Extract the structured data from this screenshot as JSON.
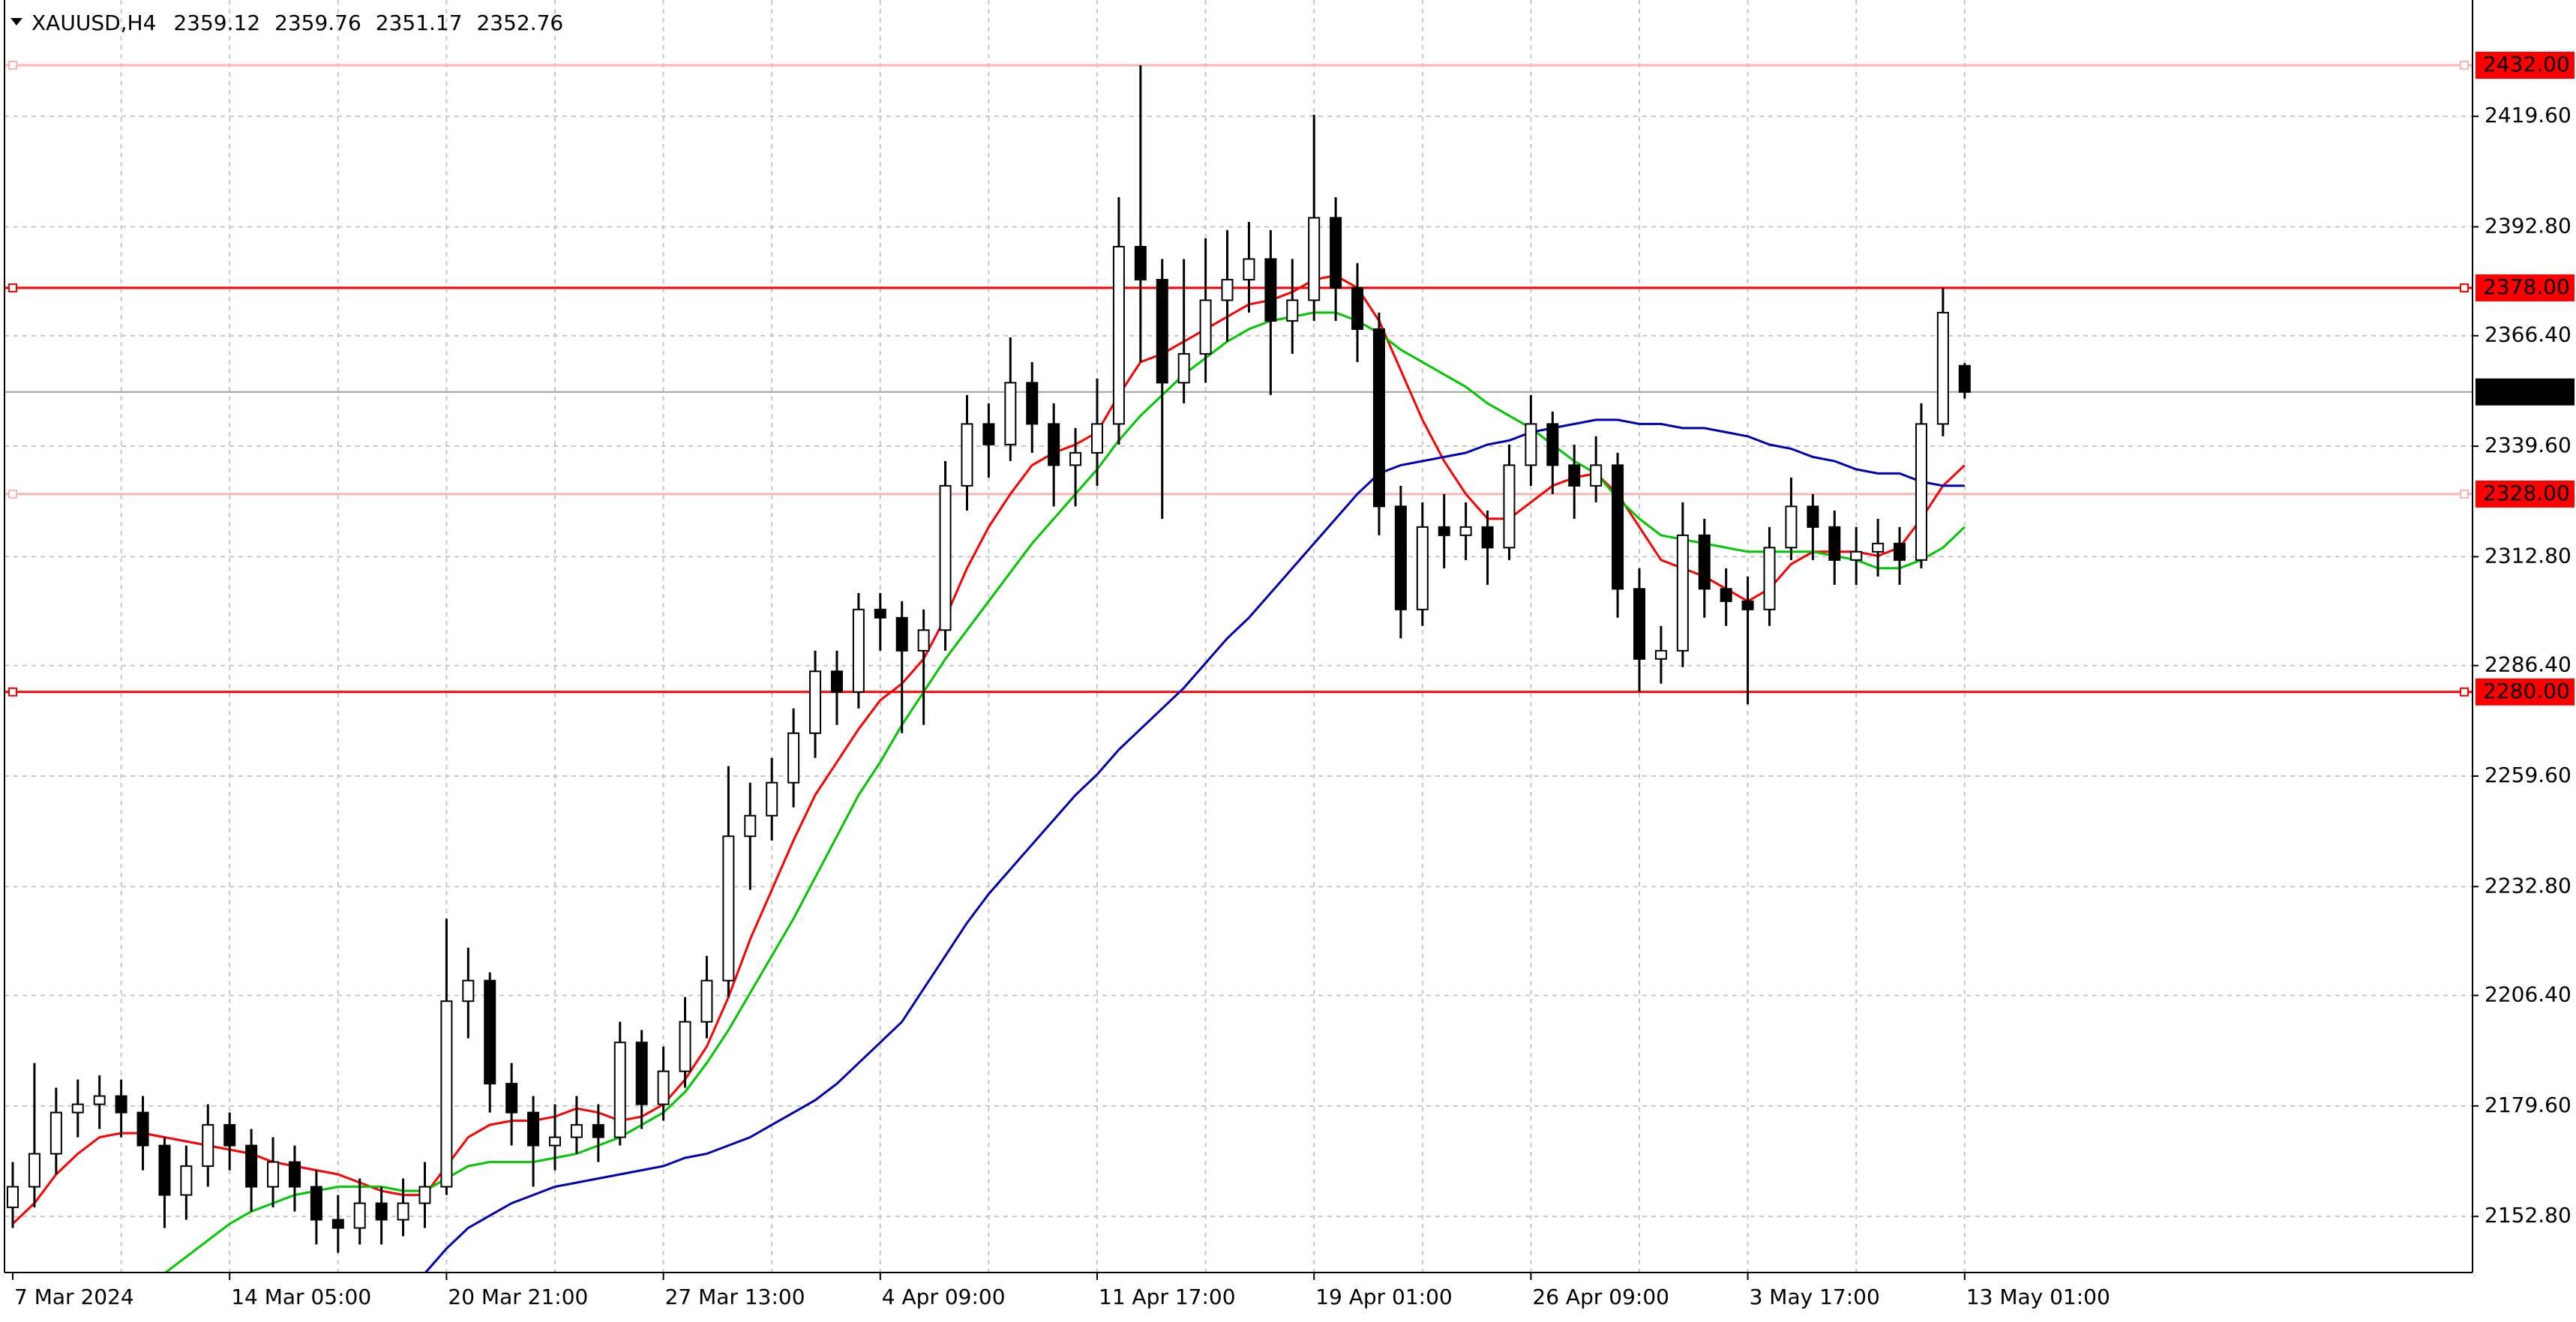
{
  "chart_data": {
    "type": "candlestick",
    "symbol": "XAUUSD,H4",
    "categories": [
      "7 Mar 2024",
      null,
      null,
      null,
      null,
      null,
      null,
      null,
      null,
      null,
      "14 Mar 05:00",
      null,
      null,
      null,
      null,
      null,
      null,
      null,
      null,
      null,
      "20 Mar 21:00",
      null,
      null,
      null,
      null,
      null,
      null,
      null,
      null,
      null,
      "27 Mar 13:00",
      null,
      null,
      null,
      null,
      null,
      null,
      null,
      null,
      null,
      "4 Apr 09:00",
      null,
      null,
      null,
      null,
      null,
      null,
      null,
      null,
      null,
      "11 Apr 17:00",
      null,
      null,
      null,
      null,
      null,
      null,
      null,
      null,
      null,
      "19 Apr 01:00",
      null,
      null,
      null,
      null,
      null,
      null,
      null,
      null,
      null,
      "26 Apr 09:00",
      null,
      null,
      null,
      null,
      null,
      null,
      null,
      null,
      null,
      "3 May 17:00",
      null,
      null,
      null,
      null,
      null,
      null,
      null,
      null,
      null,
      "13 May 01:00"
    ],
    "open": [
      2155,
      2160,
      2168,
      2178,
      2180,
      2182,
      2178,
      2170,
      2158,
      2165,
      2175,
      2170,
      2160,
      2166,
      2160,
      2152,
      2150,
      2156,
      2152,
      2156,
      2160,
      2205,
      2210,
      2185,
      2178,
      2170,
      2172,
      2175,
      2172,
      2195,
      2180,
      2188,
      2200,
      2210,
      2245,
      2250,
      2258,
      2270,
      2285,
      2280,
      2300,
      2298,
      2290,
      2295,
      2330,
      2345,
      2340,
      2355,
      2345,
      2335,
      2338,
      2345,
      2388,
      2380,
      2355,
      2362,
      2375,
      2380,
      2385,
      2370,
      2375,
      2395,
      2378,
      2368,
      2325,
      2300,
      2320,
      2318,
      2320,
      2315,
      2335,
      2345,
      2335,
      2330,
      2335,
      2305,
      2288,
      2290,
      2318,
      2305,
      2302,
      2300,
      2315,
      2325,
      2320,
      2312,
      2314,
      2316,
      2312,
      2345,
      2359.12
    ],
    "high": [
      2166,
      2190,
      2184,
      2186,
      2187,
      2186,
      2182,
      2172,
      2170,
      2180,
      2178,
      2174,
      2172,
      2170,
      2164,
      2158,
      2162,
      2160,
      2162,
      2166,
      2225,
      2218,
      2212,
      2190,
      2182,
      2180,
      2182,
      2180,
      2200,
      2198,
      2194,
      2206,
      2216,
      2262,
      2258,
      2264,
      2276,
      2290,
      2290,
      2304,
      2304,
      2302,
      2300,
      2336,
      2352,
      2350,
      2366,
      2360,
      2350,
      2344,
      2356,
      2400,
      2432,
      2385,
      2385,
      2390,
      2392,
      2394,
      2392,
      2385,
      2420,
      2400,
      2384,
      2372,
      2330,
      2326,
      2328,
      2326,
      2324,
      2340,
      2352,
      2348,
      2340,
      2342,
      2338,
      2310,
      2296,
      2326,
      2322,
      2310,
      2308,
      2320,
      2332,
      2328,
      2324,
      2320,
      2322,
      2320,
      2350,
      2378,
      2359.76
    ],
    "low": [
      2150,
      2155,
      2163,
      2172,
      2174,
      2172,
      2164,
      2150,
      2152,
      2160,
      2164,
      2154,
      2155,
      2154,
      2146,
      2144,
      2146,
      2146,
      2148,
      2150,
      2158,
      2196,
      2178,
      2170,
      2160,
      2164,
      2168,
      2166,
      2170,
      2174,
      2176,
      2184,
      2196,
      2206,
      2232,
      2244,
      2252,
      2264,
      2272,
      2276,
      2290,
      2270,
      2272,
      2290,
      2324,
      2332,
      2336,
      2338,
      2325,
      2325,
      2330,
      2340,
      2360,
      2322,
      2350,
      2355,
      2365,
      2372,
      2352,
      2362,
      2370,
      2370,
      2360,
      2318,
      2293,
      2296,
      2310,
      2312,
      2306,
      2312,
      2330,
      2328,
      2322,
      2326,
      2298,
      2280,
      2282,
      2286,
      2298,
      2296,
      2277,
      2296,
      2312,
      2312,
      2306,
      2306,
      2308,
      2306,
      2310,
      2342,
      2351.17
    ],
    "close": [
      2160,
      2168,
      2178,
      2180,
      2182,
      2178,
      2170,
      2158,
      2165,
      2175,
      2170,
      2160,
      2166,
      2160,
      2152,
      2150,
      2156,
      2152,
      2156,
      2160,
      2205,
      2210,
      2185,
      2178,
      2170,
      2172,
      2175,
      2172,
      2195,
      2180,
      2188,
      2200,
      2210,
      2245,
      2250,
      2258,
      2270,
      2285,
      2280,
      2300,
      2298,
      2290,
      2295,
      2330,
      2345,
      2340,
      2355,
      2345,
      2335,
      2338,
      2345,
      2388,
      2380,
      2355,
      2362,
      2375,
      2380,
      2385,
      2370,
      2375,
      2395,
      2378,
      2368,
      2325,
      2300,
      2320,
      2318,
      2320,
      2315,
      2335,
      2345,
      2335,
      2330,
      2335,
      2305,
      2288,
      2290,
      2318,
      2305,
      2302,
      2300,
      2315,
      2325,
      2320,
      2312,
      2314,
      2316,
      2312,
      2345,
      2372,
      2352.76
    ],
    "moving_averages": [
      {
        "color": "#ff0000",
        "values": [
          2151,
          2156,
          2163,
          2168,
          2172,
          2173,
          2173,
          2172,
          2171,
          2170,
          2169,
          2168,
          2166,
          2165,
          2164,
          2163,
          2161,
          2159,
          2158,
          2158,
          2165,
          2172,
          2175,
          2176,
          2176,
          2177,
          2179,
          2178,
          2176,
          2177,
          2180,
          2186,
          2194,
          2206,
          2220,
          2232,
          2244,
          2255,
          2263,
          2271,
          2278,
          2282,
          2288,
          2298,
          2310,
          2320,
          2328,
          2335,
          2338,
          2340,
          2343,
          2352,
          2360,
          2362,
          2365,
          2368,
          2371,
          2374,
          2375,
          2377,
          2380,
          2381,
          2378,
          2370,
          2358,
          2346,
          2336,
          2328,
          2322,
          2322,
          2326,
          2330,
          2332,
          2333,
          2328,
          2320,
          2312,
          2310,
          2308,
          2305,
          2302,
          2305,
          2311,
          2314,
          2314,
          2314,
          2313,
          2315,
          2322,
          2330,
          2335
        ]
      },
      {
        "color": "#00c800",
        "values": [
          null,
          null,
          null,
          null,
          null,
          null,
          null,
          2139,
          2143,
          2147,
          2151,
          2154,
          2156,
          2158,
          2159,
          2160,
          2160,
          2160,
          2159,
          2159,
          2162,
          2165,
          2166,
          2166,
          2166,
          2167,
          2168,
          2170,
          2172,
          2175,
          2178,
          2183,
          2190,
          2198,
          2207,
          2216,
          2225,
          2235,
          2245,
          2255,
          2263,
          2272,
          2280,
          2288,
          2295,
          2302,
          2309,
          2316,
          2322,
          2328,
          2334,
          2341,
          2347,
          2352,
          2357,
          2361,
          2365,
          2368,
          2370,
          2371,
          2372,
          2372,
          2370,
          2367,
          2363,
          2360,
          2357,
          2354,
          2350,
          2347,
          2344,
          2340,
          2336,
          2333,
          2327,
          2322,
          2318,
          2317,
          2316,
          2315,
          2314,
          2314,
          2314,
          2314,
          2313,
          2312,
          2310,
          2310,
          2312,
          2315,
          2320
        ]
      },
      {
        "color": "#0000b4",
        "values": [
          null,
          null,
          null,
          null,
          null,
          null,
          null,
          null,
          null,
          null,
          null,
          null,
          null,
          null,
          null,
          null,
          null,
          null,
          null,
          2139,
          2145,
          2150,
          2153,
          2156,
          2158,
          2160,
          2161,
          2162,
          2163,
          2164,
          2165,
          2167,
          2168,
          2170,
          2172,
          2175,
          2178,
          2181,
          2185,
          2190,
          2195,
          2200,
          2208,
          2216,
          2224,
          2231,
          2237,
          2243,
          2249,
          2255,
          2260,
          2266,
          2271,
          2276,
          2281,
          2287,
          2293,
          2298,
          2304,
          2310,
          2316,
          2322,
          2328,
          2333,
          2335,
          2336,
          2337,
          2338,
          2340,
          2341,
          2343,
          2344,
          2345,
          2346,
          2346,
          2345,
          2345,
          2344,
          2344,
          2343,
          2342,
          2340,
          2339,
          2337,
          2336,
          2334,
          2333,
          2333,
          2331,
          2330,
          2330
        ]
      }
    ],
    "levels": [
      {
        "value": 2432,
        "label": "2432.00",
        "color": "#ffb4b4"
      },
      {
        "value": 2378,
        "label": "2378.00",
        "color": "#ff0000"
      },
      {
        "value": 2328,
        "label": "2328.00",
        "color": "#ffb4b4"
      },
      {
        "value": 2280,
        "label": "2280.00",
        "color": "#ff0000"
      }
    ],
    "ylim": [
      2139.2,
      2446.0
    ],
    "yticks": [
      {
        "value": 2152.8,
        "label": "2152.80"
      },
      {
        "value": 2179.6,
        "label": "2179.60"
      },
      {
        "value": 2206.4,
        "label": "2206.40"
      },
      {
        "value": 2232.8,
        "label": "2232.80"
      },
      {
        "value": 2259.6,
        "label": "2259.60"
      },
      {
        "value": 2286.4,
        "label": "2286.40"
      },
      {
        "value": 2312.8,
        "label": "2312.80"
      },
      {
        "value": 2339.6,
        "label": "2339.60"
      },
      {
        "value": 2366.4,
        "label": "2366.40"
      },
      {
        "value": 2392.8,
        "label": "2392.80"
      },
      {
        "value": 2419.6,
        "label": "2419.60"
      }
    ],
    "grid": true
  }
}
